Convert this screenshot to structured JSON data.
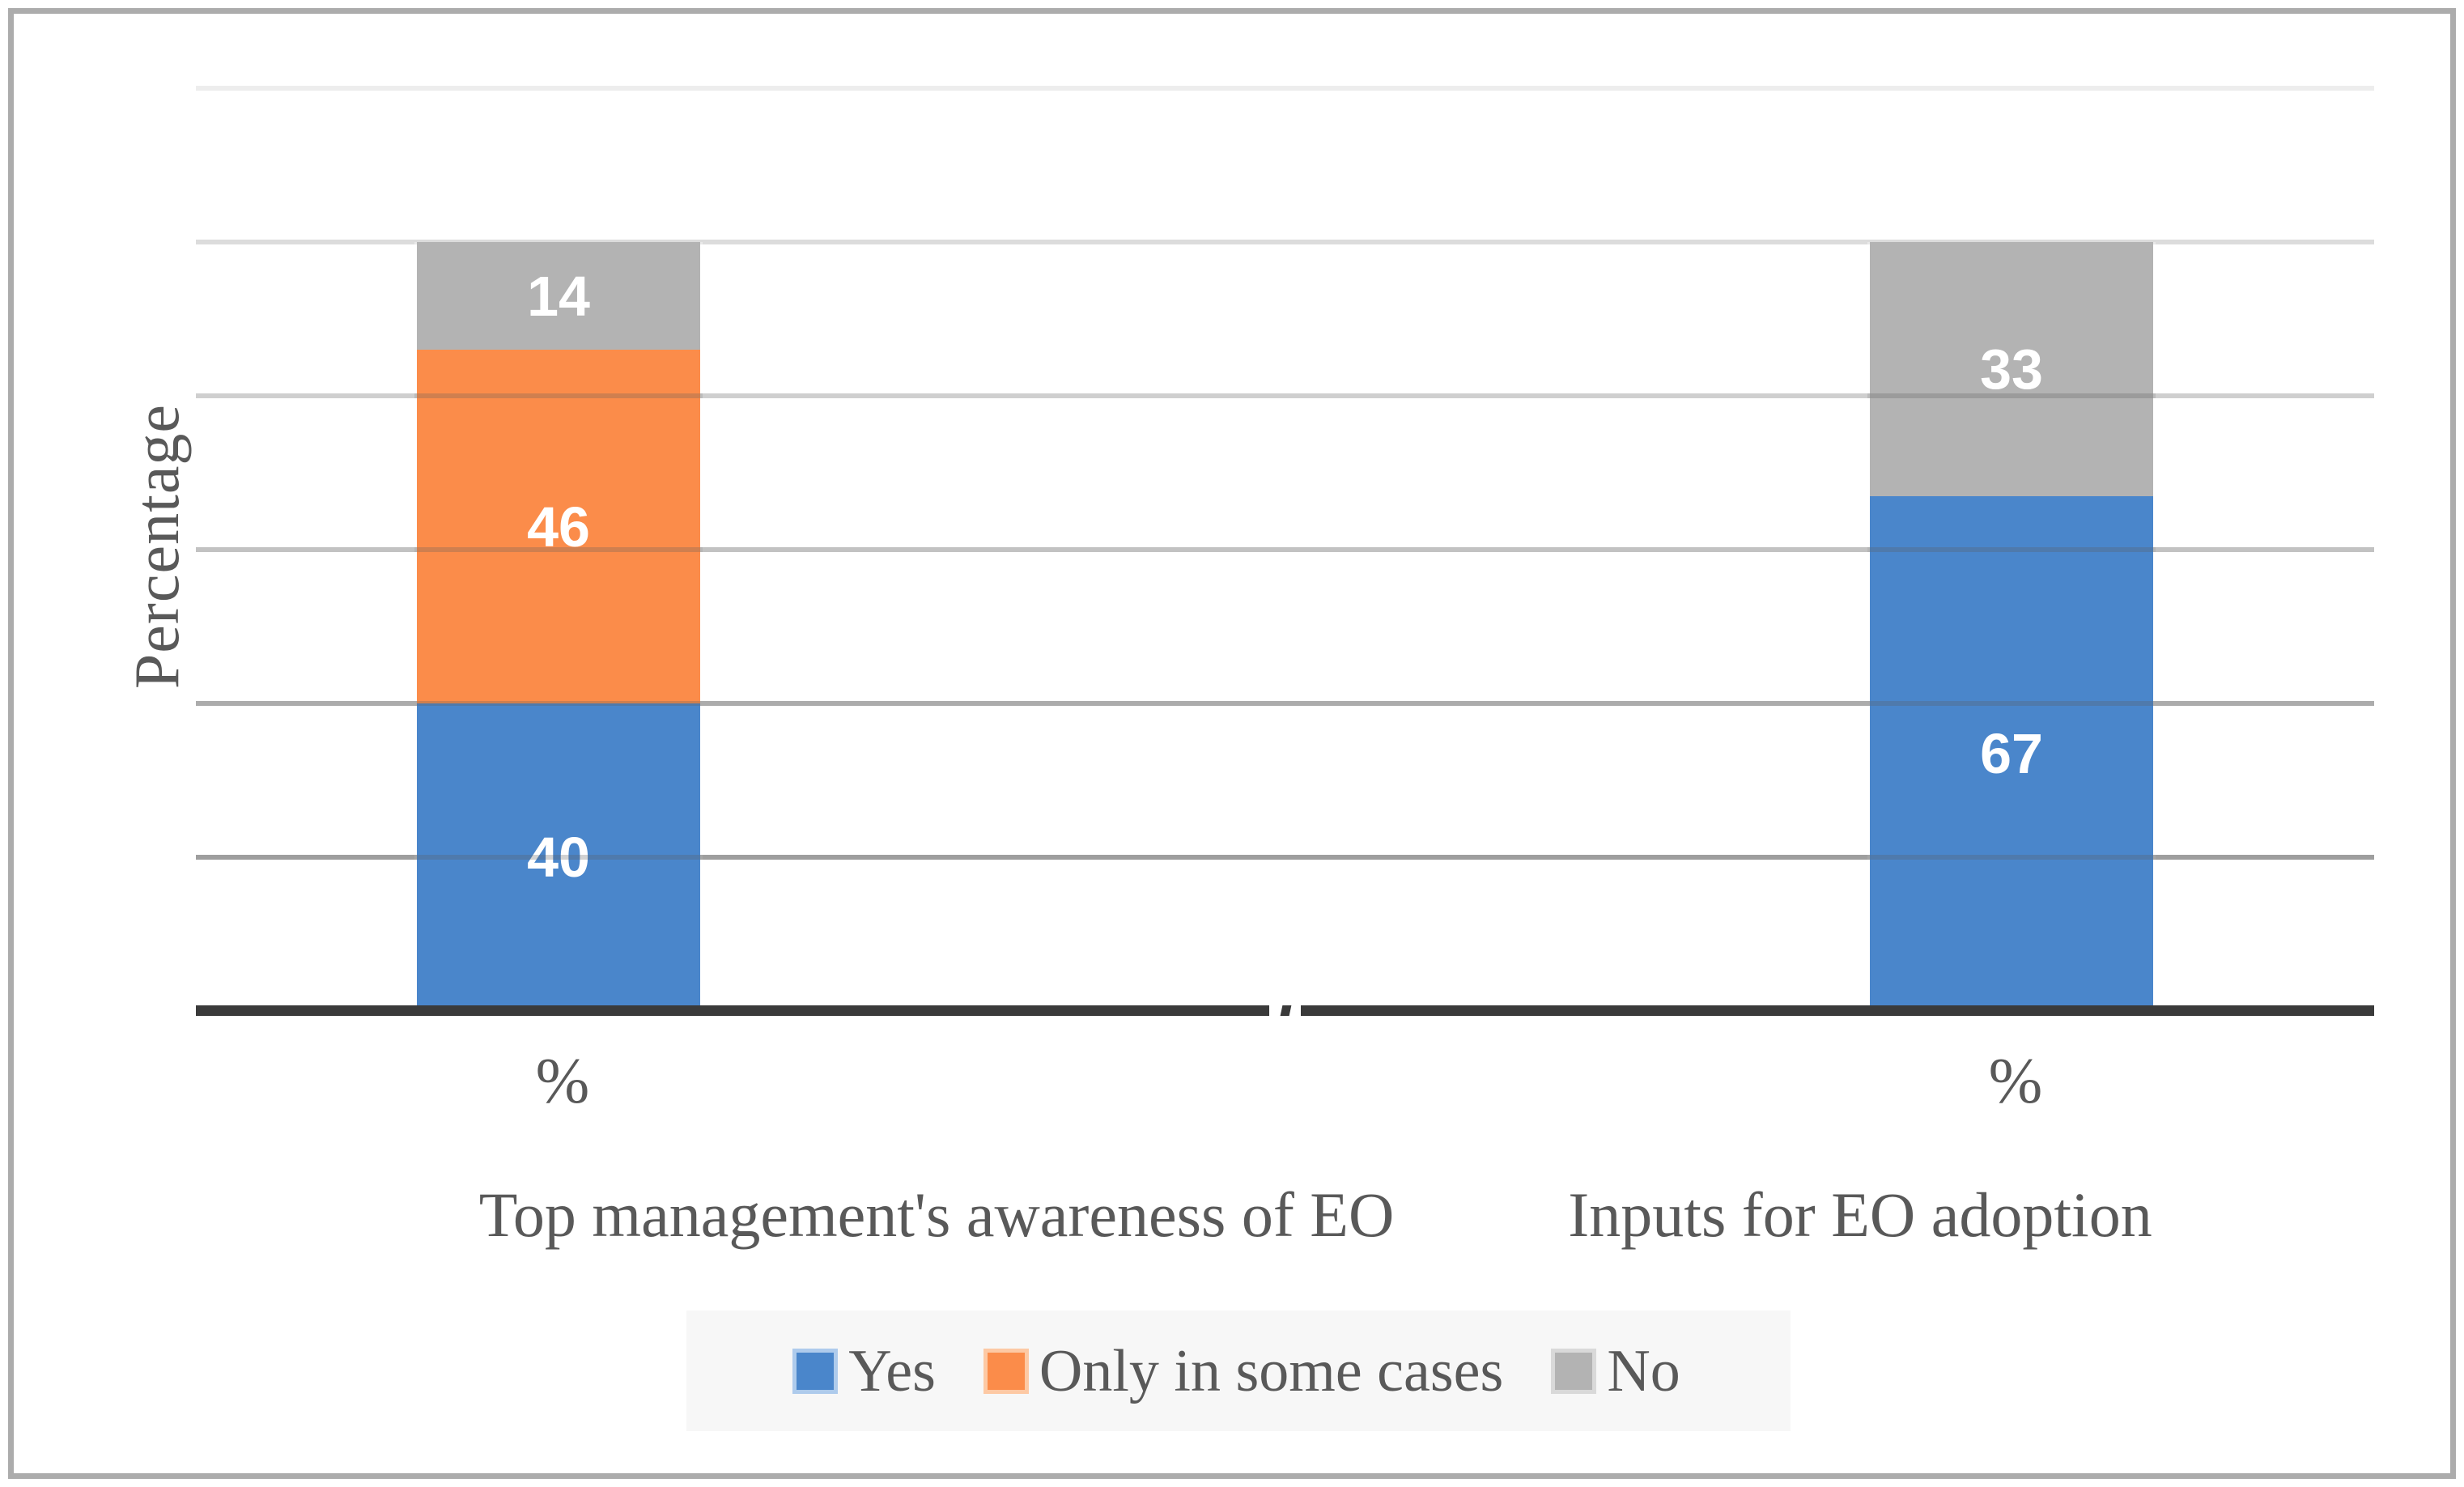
{
  "chart_data": {
    "type": "bar",
    "stacked": true,
    "title": "",
    "ylabel": "Percentage",
    "ylim": [
      0,
      120
    ],
    "gridline_step": 20,
    "grid": "on",
    "legend_position": "bottom",
    "axis_break_between_groups": true,
    "categories": [
      "Top management's awareness of EO",
      "Inputs for EO adoption"
    ],
    "x_tick_labels": [
      "%",
      "%"
    ],
    "series": [
      {
        "name": "Yes",
        "color": "#4A86CB",
        "halo": "#AECBEC",
        "values": [
          40,
          67
        ]
      },
      {
        "name": "Only in some cases",
        "color": "#FB8C4A",
        "halo": "#FDC9A4",
        "values": [
          46,
          0
        ]
      },
      {
        "name": "No",
        "color": "#B3B3B3",
        "halo": "#D9D9D9",
        "values": [
          14,
          33
        ]
      }
    ],
    "data_labels": {
      "color": "#FFFFFF",
      "shown": [
        [
          "40",
          "46",
          "14"
        ],
        [
          "67",
          "33"
        ]
      ]
    }
  },
  "colors": {
    "axis_line": "#3A3A3A",
    "text": "#595959",
    "legend_background": "#F7F7F7",
    "outer_border": "#ACACAC",
    "gridline_light": "#EDEDED",
    "gridline_dark": "#9E9E9E",
    "background": "#FFFFFF"
  }
}
